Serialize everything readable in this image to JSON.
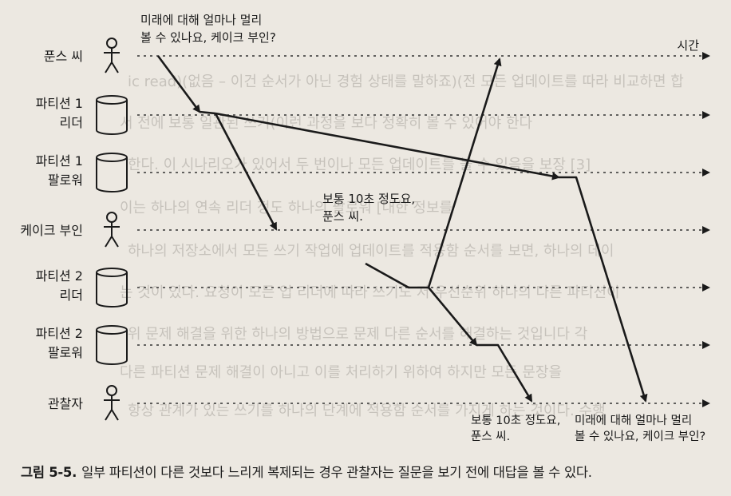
{
  "participants": [
    {
      "id": "funs",
      "kind": "person",
      "lines": [
        "푼스 씨"
      ]
    },
    {
      "id": "p1leader",
      "kind": "db",
      "lines": [
        "파티션 1",
        "리더"
      ]
    },
    {
      "id": "p1follower",
      "kind": "db",
      "lines": [
        "파티션 1",
        "팔로워"
      ]
    },
    {
      "id": "cake",
      "kind": "person",
      "lines": [
        "케이크 부인"
      ]
    },
    {
      "id": "p2leader",
      "kind": "db",
      "lines": [
        "파티션 2",
        "리더"
      ]
    },
    {
      "id": "p2follower",
      "kind": "db",
      "lines": [
        "파티션 2",
        "팔로워"
      ]
    },
    {
      "id": "observer",
      "kind": "person",
      "lines": [
        "관찰자"
      ]
    }
  ],
  "time_label": "시간",
  "messages": {
    "question_top": [
      "미래에 대해 얼마나 멀리",
      "볼 수 있나요, 케이크 부인?"
    ],
    "answer_mid": [
      "보통 10초 정도요,",
      "푼스 씨."
    ],
    "answer_bottom": [
      "보통 10초 정도요,",
      "푼스 씨."
    ],
    "question_bottom": [
      "미래에 대해 얼마나 멀리",
      "볼 수 있나요, 케이크 부인?"
    ]
  },
  "caption": {
    "number": "그림 5-5.",
    "text": "일부 파티션이 다른 것보다 느리게 복제되는 경우 관찰자는 질문을 보기 전에 대답을 볼 수 있다."
  },
  "background_text": [
    "ic read)(없음 – 이건 순서가 아닌 경험 상태를 말하죠)(전 모든 업데이트를 따라 비교하면 합",
    "서 전에 보통 일관된 쓰기(이런 과정을 보다 정확히 볼 수 있어야 한다",
    "한다. 이 시나리오가 있어서 두 번이나 모든 업데이트를 볼 수 있음을 보장 [3]",
    "이는 하나의 연속 리더 정도 하나의 팔로워 [대한 정보를",
    "하나의 저장소에서 모든 쓰기 작업에 업데이트를 적용함 순서를 보면, 하나의 데이",
    "는 것이 있다. 요청이 모든 업 리더에 따라 쓰기도 저 우선순위 하나의 다른 파티션이",
    "위 문제 해결을 위한 하나의 방법으로 문제 다른 순서를 해결하는 것입니다 각",
    "다른 파티션 문제 해결이 아니고 이를 처리하기 위하여 하지만 모든 문장을",
    "항상 관계가 있는 쓰기를 하나의 단계에 적용함 순서를 가지게 하는 것이다. 수행"
  ]
}
